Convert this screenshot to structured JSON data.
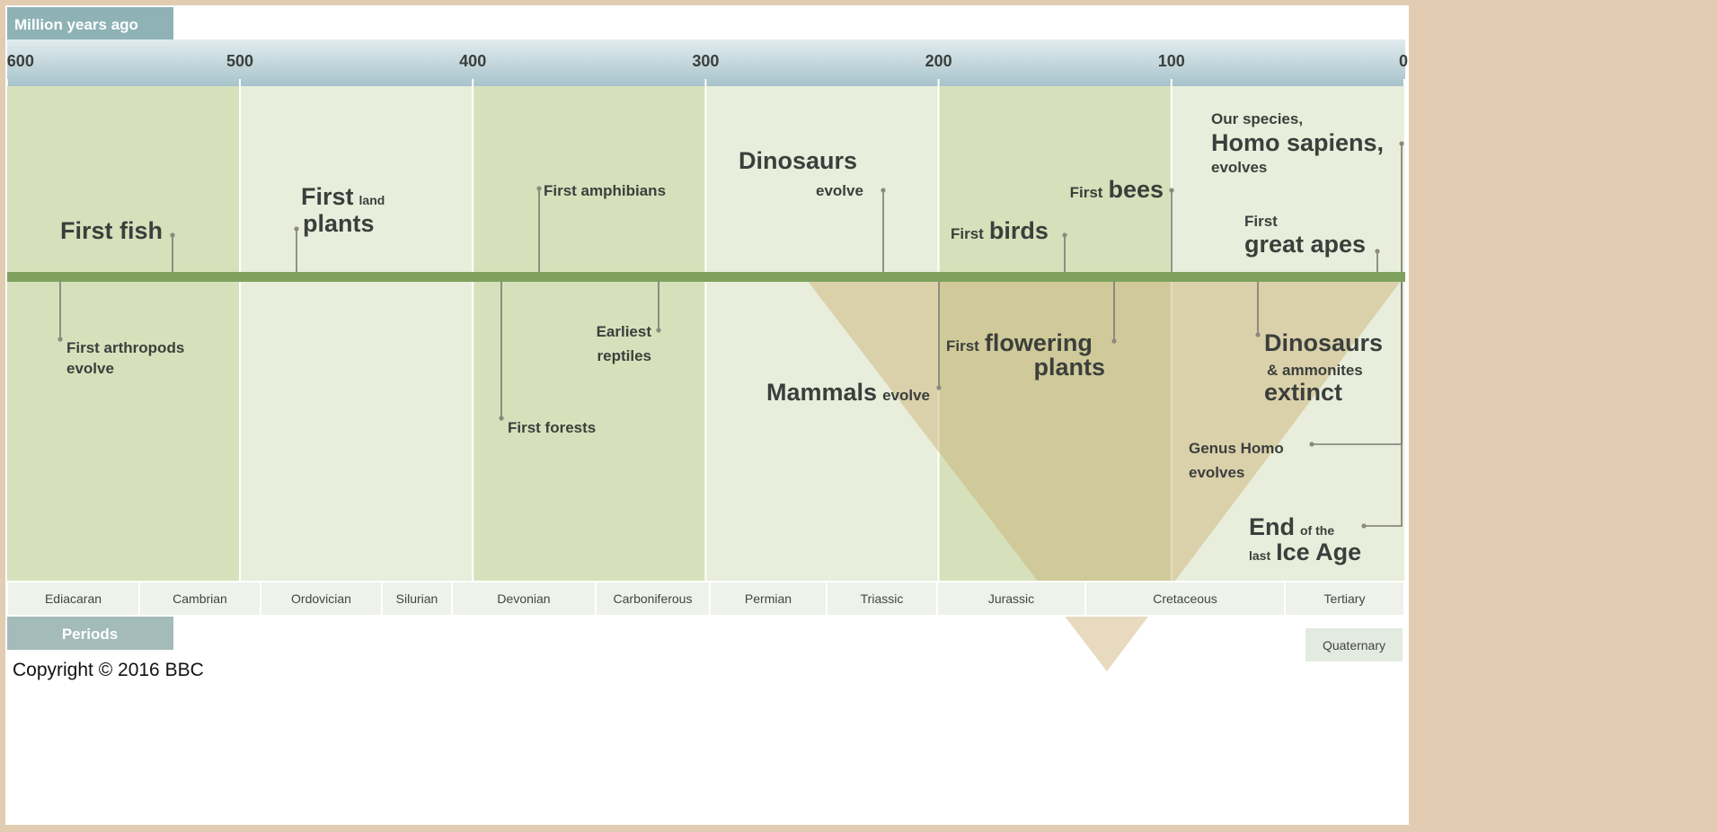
{
  "axis": {
    "label": "Million years ago",
    "ticks": [
      600,
      500,
      400,
      300,
      200,
      100,
      0
    ]
  },
  "events": [
    {
      "lines": [
        [
          "First fish"
        ]
      ]
    },
    {
      "lines": [
        [
          "First",
          "land"
        ],
        [
          "plants"
        ]
      ]
    },
    {
      "lines": [
        [
          "First amphibians"
        ]
      ]
    },
    {
      "lines": [
        [
          "Dinosaurs"
        ],
        [
          "evolve"
        ]
      ]
    },
    {
      "lines": [
        [
          "First",
          "bees"
        ]
      ]
    },
    {
      "lines": [
        [
          "First",
          "birds"
        ]
      ]
    },
    {
      "lines": [
        [
          "Our species,"
        ],
        [
          "Homo sapiens,"
        ],
        [
          "evolves"
        ]
      ]
    },
    {
      "lines": [
        [
          "First"
        ],
        [
          "great apes"
        ]
      ]
    },
    {
      "lines": [
        [
          "First arthropods"
        ],
        [
          "evolve"
        ]
      ]
    },
    {
      "lines": [
        [
          "First forests"
        ]
      ]
    },
    {
      "lines": [
        [
          "Earliest"
        ],
        [
          "reptiles"
        ]
      ]
    },
    {
      "lines": [
        [
          "Mammals",
          "evolve"
        ]
      ]
    },
    {
      "lines": [
        [
          "First",
          "flowering"
        ],
        [
          "plants"
        ]
      ]
    },
    {
      "lines": [
        [
          "Dinosaurs"
        ],
        [
          "& ammonites"
        ],
        [
          "extinct"
        ]
      ]
    },
    {
      "lines": [
        [
          "Genus Homo"
        ],
        [
          "evolves"
        ]
      ]
    },
    {
      "lines": [
        [
          "End",
          "of the"
        ],
        [
          "last",
          "Ice Age"
        ]
      ]
    }
  ],
  "periods": {
    "label": "Periods",
    "names": [
      "Ediacaran",
      "Cambrian",
      "Ordovician",
      "Silurian",
      "Devonian",
      "Carboniferous",
      "Permian",
      "Triassic",
      "Jurassic",
      "Cretaceous",
      "Tertiary"
    ],
    "extra": "Quaternary"
  },
  "copyright": "Copyright © 2016 BBC"
}
